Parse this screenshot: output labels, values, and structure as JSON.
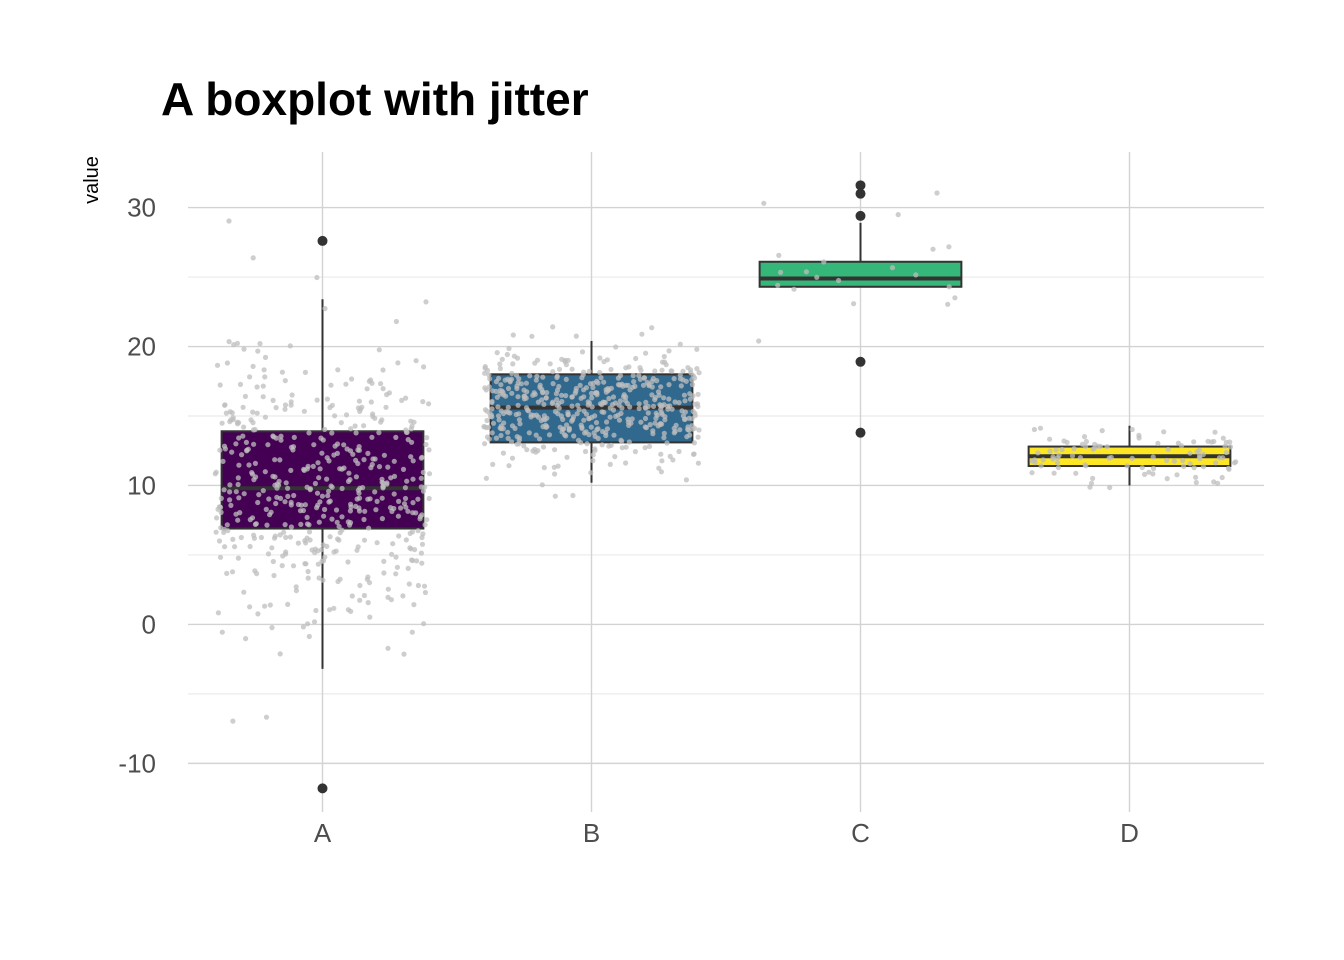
{
  "chart_data": {
    "type": "boxplot",
    "title": "A boxplot with jitter",
    "xlabel": "",
    "ylabel": "value",
    "ylim": [
      -13.5,
      34
    ],
    "y_ticks": [
      -10,
      0,
      10,
      20,
      30
    ],
    "grid": true,
    "legend": "none",
    "jitter_color": "#bdbdbd",
    "outlier_color": "#333333",
    "categories": [
      "A",
      "B",
      "C",
      "D"
    ],
    "boxes": [
      {
        "name": "A",
        "color": "#440154",
        "whisker_low": -3.2,
        "q1": 6.9,
        "median": 9.8,
        "q3": 13.9,
        "whisker_high": 23.4,
        "outliers": [
          27.6,
          -11.8
        ],
        "n_points": 500,
        "mean": 10,
        "sd": 5
      },
      {
        "name": "B",
        "color": "#31688e",
        "whisker_low": 10.2,
        "q1": 13.1,
        "median": 15.6,
        "q3": 18.0,
        "whisker_high": 20.4,
        "outliers": [],
        "n_points": 500,
        "mean": 15.5,
        "sd": 2.2
      },
      {
        "name": "C",
        "color": "#35b779",
        "whisker_low": 24.3,
        "q1": 24.3,
        "median": 24.9,
        "q3": 26.1,
        "whisker_high": 28.9,
        "outliers": [
          31.6,
          31.0,
          29.4,
          18.9,
          13.8
        ],
        "n_points": 20,
        "mean": 25.2,
        "sd": 2.5
      },
      {
        "name": "D",
        "color": "#fde725",
        "whisker_low": 10.0,
        "q1": 11.4,
        "median": 12.1,
        "q3": 12.8,
        "whisker_high": 14.3,
        "outliers": [],
        "n_points": 100,
        "mean": 12.1,
        "sd": 1.0
      }
    ]
  }
}
